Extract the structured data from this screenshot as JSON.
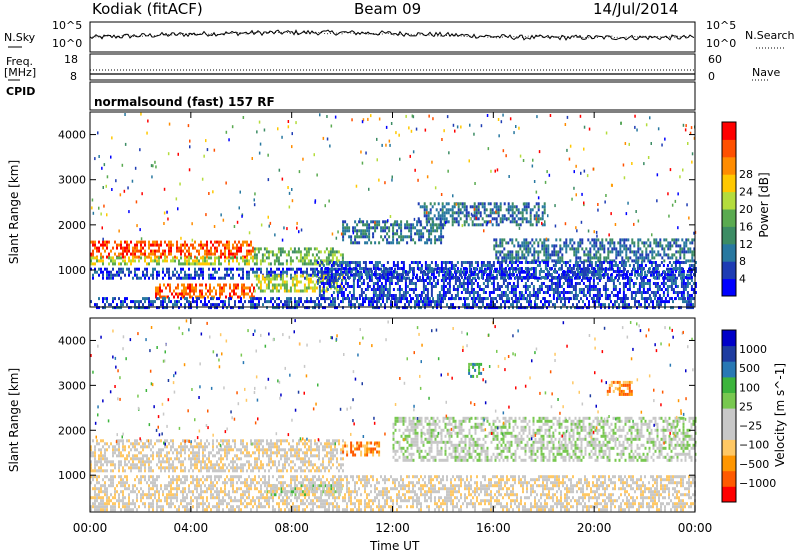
{
  "header": {
    "station": "Kodiak (fitACF)",
    "beam": "Beam 09",
    "date": "14/Jul/2014"
  },
  "strip_panels": {
    "nsky": {
      "label": "N.Sky",
      "right_label": "N.Search",
      "left_ticks": [
        "10^5",
        "10^0"
      ],
      "right_ticks": [
        "10^5",
        "10^0"
      ]
    },
    "freq": {
      "label": "Freq.",
      "unit": "[MHz]",
      "left_ticks": [
        "18",
        "8"
      ],
      "right_label": "Nave",
      "right_ticks": [
        "60",
        "0"
      ]
    },
    "cpid": {
      "label": "CPID",
      "text": "normalsound (fast) 157 RF"
    }
  },
  "colors": {
    "power": [
      "#0000ff",
      "#1e3cb4",
      "#2878a0",
      "#3c8c64",
      "#5aaa50",
      "#b4dc3c",
      "#ffc800",
      "#ff8c00",
      "#ff5000",
      "#ff0000"
    ],
    "velocity": [
      "#ff0000",
      "#ff5a00",
      "#ff9600",
      "#ffc864",
      "#c8c8c8",
      "#c8c8c8",
      "#78c850",
      "#3cb43c",
      "#2878b4",
      "#1e3ca0",
      "#0000c8"
    ]
  },
  "chart_data": [
    {
      "type": "heatmap",
      "name": "power",
      "ylabel": "Slant Range [km]",
      "xlabel": "Time UT",
      "xticks": [
        "00:00",
        "04:00",
        "08:00",
        "12:00",
        "16:00",
        "20:00",
        "00:00"
      ],
      "yticks": [
        "1000",
        "2000",
        "3000",
        "4000"
      ],
      "ylim": [
        180,
        4500
      ],
      "xlim": [
        0,
        24
      ],
      "colorbar": {
        "label": "Power [dB]",
        "ticks": [
          "4",
          "8",
          "12",
          "16",
          "20",
          "24",
          "28"
        ]
      },
      "bands": [
        {
          "t0": 0,
          "t1": 6.5,
          "r0": 1300,
          "r1": 1650,
          "level": 8
        },
        {
          "t0": 0,
          "t1": 6.5,
          "r0": 1150,
          "r1": 1300,
          "level": 5
        },
        {
          "t0": 6.5,
          "t1": 10,
          "r0": 1150,
          "r1": 1500,
          "level": 4
        },
        {
          "t0": 10,
          "t1": 14,
          "r0": 1600,
          "r1": 2100,
          "level": 2
        },
        {
          "t0": 13,
          "t1": 18,
          "r0": 2000,
          "r1": 2500,
          "level": 2
        },
        {
          "t0": 16,
          "t1": 24,
          "r0": 1200,
          "r1": 1700,
          "level": 2
        },
        {
          "t0": 0,
          "t1": 24,
          "r0": 850,
          "r1": 1050,
          "level": 1
        },
        {
          "t0": 2.5,
          "t1": 6.5,
          "r0": 400,
          "r1": 700,
          "level": 8
        },
        {
          "t0": 6.5,
          "t1": 10,
          "r0": 550,
          "r1": 900,
          "level": 5
        },
        {
          "t0": 0,
          "t1": 24,
          "r0": 200,
          "r1": 400,
          "level": 1
        },
        {
          "t0": 9,
          "t1": 24,
          "r0": 400,
          "r1": 1200,
          "level": 1
        }
      ]
    },
    {
      "type": "heatmap",
      "name": "velocity",
      "ylabel": "Slant Range [km]",
      "xlabel": "Time UT",
      "xticks": [
        "00:00",
        "04:00",
        "08:00",
        "12:00",
        "16:00",
        "20:00",
        "00:00"
      ],
      "yticks": [
        "1000",
        "2000",
        "3000",
        "4000"
      ],
      "ylim": [
        180,
        4500
      ],
      "xlim": [
        0,
        24
      ],
      "colorbar": {
        "label": "Velocity [m s^-1]",
        "ticks": [
          "1000",
          "500",
          "100",
          "25",
          "−25",
          "−100",
          "−500",
          "−1000"
        ]
      },
      "bands": [
        {
          "t0": 0,
          "t1": 10,
          "r0": 1100,
          "r1": 1800,
          "level": 4
        },
        {
          "t0": 10,
          "t1": 11.5,
          "r0": 1450,
          "r1": 1750,
          "level": 2
        },
        {
          "t0": 7,
          "t1": 10,
          "r0": 550,
          "r1": 800,
          "level": 6
        },
        {
          "t0": 12,
          "t1": 24,
          "r0": 1300,
          "r1": 2300,
          "level": 5
        },
        {
          "t0": 0,
          "t1": 24,
          "r0": 200,
          "r1": 1000,
          "level": 4
        },
        {
          "t0": 15,
          "t1": 15.5,
          "r0": 3200,
          "r1": 3500,
          "level": 7
        },
        {
          "t0": 20.5,
          "t1": 21.5,
          "r0": 2800,
          "r1": 3100,
          "level": 2
        }
      ]
    }
  ]
}
